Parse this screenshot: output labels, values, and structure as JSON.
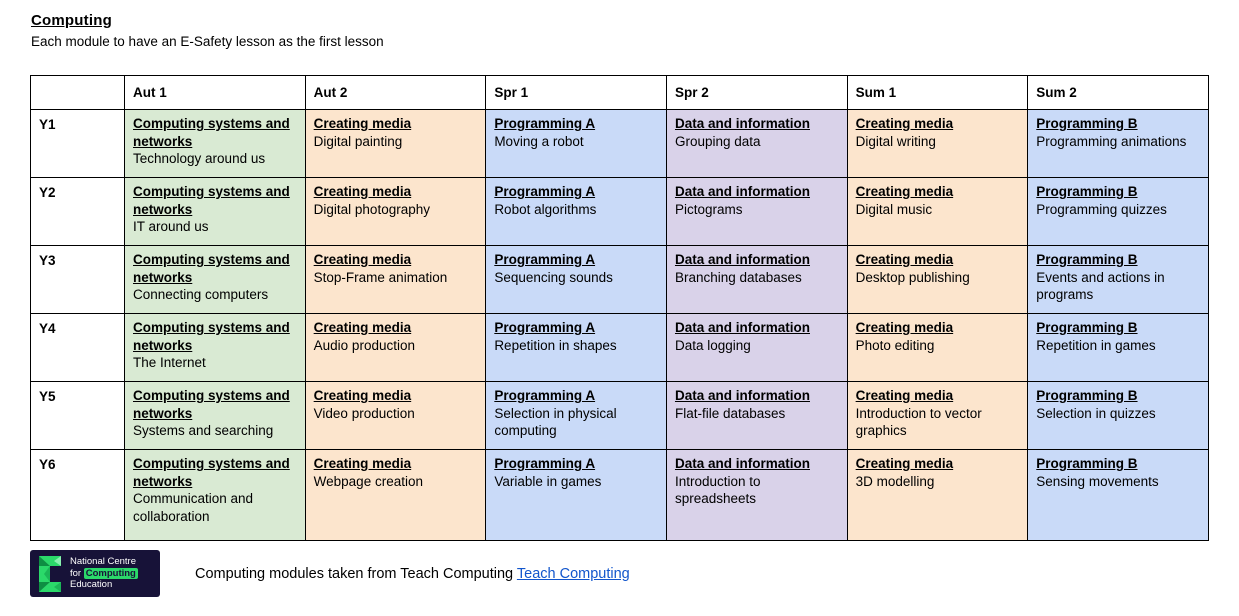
{
  "page": {
    "title": "Computing",
    "subtitle": "Each module to have an E-Safety lesson as the first lesson"
  },
  "colors": {
    "green": "#d9ead3",
    "orange": "#fce5cd",
    "blue": "#c9daf8",
    "purple": "#d9d2e9",
    "link": "#1155cc",
    "logo_bg": "#171238",
    "logo_green": "#2bd96a"
  },
  "category_colors": {
    "Computing systems and networks": "green",
    "Creating media": "orange",
    "Programming A": "blue",
    "Data and information": "purple",
    "Programming B": "blue"
  },
  "table": {
    "columns": [
      "",
      "Aut 1",
      "Aut 2",
      "Spr 1",
      "Spr 2",
      "Sum 1",
      "Sum 2"
    ],
    "rows": [
      {
        "year": "Y1",
        "cells": [
          {
            "category": "Computing systems and networks",
            "topic": "Technology around us"
          },
          {
            "category": "Creating media",
            "topic": "Digital painting"
          },
          {
            "category": "Programming A",
            "topic": "Moving a robot"
          },
          {
            "category": "Data and information",
            "topic": "Grouping data"
          },
          {
            "category": "Creating media",
            "topic": "Digital writing"
          },
          {
            "category": "Programming B",
            "topic": "Programming animations"
          }
        ]
      },
      {
        "year": "Y2",
        "cells": [
          {
            "category": "Computing systems and networks",
            "topic": "IT around us"
          },
          {
            "category": "Creating media",
            "topic": "Digital photography"
          },
          {
            "category": "Programming A",
            "topic": "Robot algorithms"
          },
          {
            "category": "Data and information",
            "topic": "Pictograms"
          },
          {
            "category": "Creating media",
            "topic": "Digital music"
          },
          {
            "category": "Programming B",
            "topic": "Programming quizzes"
          }
        ]
      },
      {
        "year": "Y3",
        "cells": [
          {
            "category": "Computing systems and networks",
            "topic": "Connecting computers"
          },
          {
            "category": "Creating media",
            "topic": "Stop-Frame animation"
          },
          {
            "category": "Programming A",
            "topic": "Sequencing sounds"
          },
          {
            "category": "Data and information",
            "topic": "Branching databases"
          },
          {
            "category": "Creating media",
            "topic": "Desktop publishing"
          },
          {
            "category": "Programming B",
            "topic": "Events and actions in programs"
          }
        ]
      },
      {
        "year": "Y4",
        "cells": [
          {
            "category": "Computing systems and networks",
            "topic": "The Internet"
          },
          {
            "category": "Creating media",
            "topic": "Audio production"
          },
          {
            "category": "Programming A",
            "topic": "Repetition in shapes"
          },
          {
            "category": "Data and information",
            "topic": "Data logging"
          },
          {
            "category": "Creating media",
            "topic": "Photo editing"
          },
          {
            "category": "Programming B",
            "topic": "Repetition in games"
          }
        ]
      },
      {
        "year": "Y5",
        "cells": [
          {
            "category": "Computing systems and networks",
            "topic": "Systems and searching"
          },
          {
            "category": "Creating media",
            "topic": "Video production"
          },
          {
            "category": "Programming A",
            "topic": "Selection in physical computing"
          },
          {
            "category": "Data and information",
            "topic": "Flat-file databases"
          },
          {
            "category": "Creating media",
            "topic": "Introduction to vector graphics"
          },
          {
            "category": "Programming B",
            "topic": "Selection in quizzes"
          }
        ]
      },
      {
        "year": "Y6",
        "cells": [
          {
            "category": "Computing systems and networks",
            "topic": "Communication and collaboration"
          },
          {
            "category": "Creating media",
            "topic": "Webpage creation"
          },
          {
            "category": "Programming A",
            "topic": "Variable in games"
          },
          {
            "category": "Data and information",
            "topic": "Introduction to spreadsheets"
          },
          {
            "category": "Creating media",
            "topic": "3D modelling"
          },
          {
            "category": "Programming B",
            "topic": "Sensing movements"
          }
        ]
      }
    ]
  },
  "footer": {
    "logo": {
      "line1": "National Centre",
      "line2_prefix": "for",
      "line2_highlight": "Computing",
      "line3": "Education"
    },
    "caption": "Computing modules taken from Teach Computing",
    "link_label": "Teach Computing"
  }
}
